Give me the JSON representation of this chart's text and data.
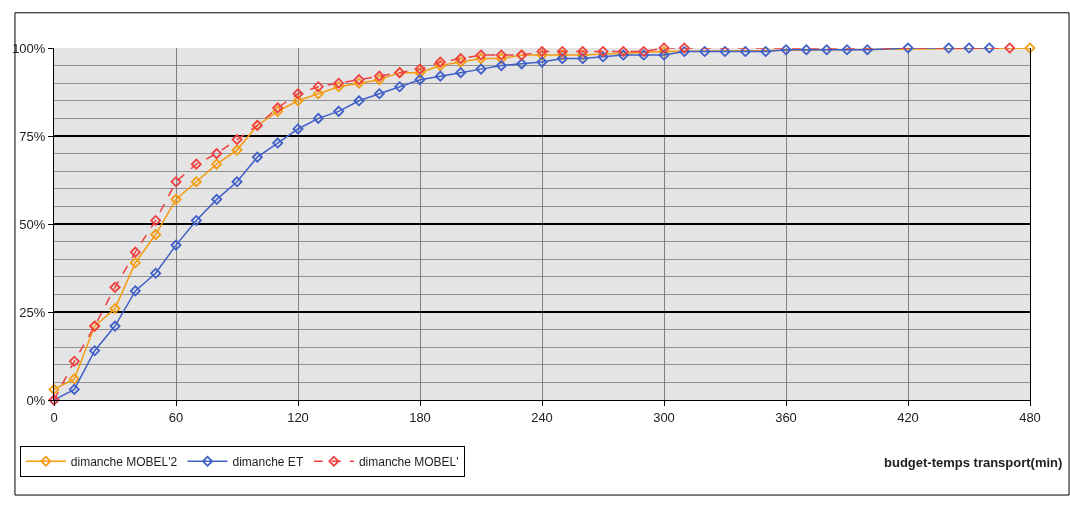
{
  "chart_data": {
    "type": "line",
    "xlabel": "budget-temps transport(min)",
    "xlim": [
      0,
      480
    ],
    "xticks": [
      0,
      60,
      120,
      180,
      240,
      300,
      360,
      420,
      480
    ],
    "ylim": [
      0,
      100
    ],
    "yticks": [
      {
        "value": 0,
        "label": "0%"
      },
      {
        "value": 25,
        "label": "25%"
      },
      {
        "value": 50,
        "label": "50%"
      },
      {
        "value": 75,
        "label": "75%"
      },
      {
        "value": 100,
        "label": "100%"
      }
    ],
    "grid": true,
    "legend": "bottom left",
    "marker": "diamond",
    "series": [
      {
        "name": "dimanche MOBEL'2",
        "color": "#f39c12",
        "line_style": "solid",
        "x": [
          0,
          10,
          20,
          30,
          40,
          50,
          60,
          70,
          80,
          90,
          100,
          110,
          120,
          130,
          140,
          150,
          160,
          170,
          180,
          190,
          200,
          210,
          220,
          230,
          240,
          250,
          260,
          270,
          280,
          290,
          300,
          310,
          480
        ],
        "values": [
          3,
          6,
          21,
          26,
          39,
          47,
          57,
          62,
          67,
          71,
          78,
          82,
          85,
          87,
          89,
          90,
          91,
          93,
          93,
          95,
          96,
          97,
          97,
          98,
          98,
          98,
          98,
          null,
          null,
          null,
          99,
          null,
          100
        ]
      },
      {
        "name": "dimanche ET",
        "color": "#4060c8",
        "line_style": "solid",
        "x": [
          0,
          10,
          20,
          30,
          40,
          50,
          60,
          70,
          80,
          90,
          100,
          110,
          120,
          130,
          140,
          150,
          160,
          170,
          180,
          190,
          200,
          210,
          220,
          230,
          240,
          250,
          260,
          270,
          280,
          290,
          300,
          310,
          320,
          330,
          340,
          350,
          360,
          370,
          380,
          390,
          400,
          420,
          440,
          450,
          460
        ],
        "values": [
          0,
          3,
          14,
          21,
          31,
          36,
          44,
          51,
          57,
          62,
          69,
          73,
          77,
          80,
          82,
          85,
          87,
          89,
          91,
          92,
          93,
          94,
          95,
          95.5,
          96,
          97,
          97,
          97.5,
          98,
          98,
          98,
          99,
          99,
          99,
          99,
          99,
          99.5,
          99.5,
          99.5,
          99.5,
          99.5,
          100,
          100,
          100,
          100
        ]
      },
      {
        "name": "dimanche MOBEL'",
        "color": "#f04040",
        "line_style": "dashed",
        "x": [
          0,
          10,
          20,
          30,
          40,
          50,
          60,
          70,
          80,
          90,
          100,
          110,
          120,
          130,
          140,
          150,
          160,
          170,
          180,
          190,
          200,
          210,
          220,
          230,
          240,
          250,
          260,
          270,
          280,
          290,
          300,
          310,
          470
        ],
        "values": [
          0,
          11,
          21,
          32,
          42,
          51,
          62,
          67,
          70,
          74,
          78,
          83,
          87,
          89,
          90,
          91,
          92,
          93,
          94,
          96,
          97,
          98,
          98,
          98,
          99,
          99,
          99,
          99,
          99,
          99,
          100,
          100,
          100
        ]
      }
    ]
  }
}
